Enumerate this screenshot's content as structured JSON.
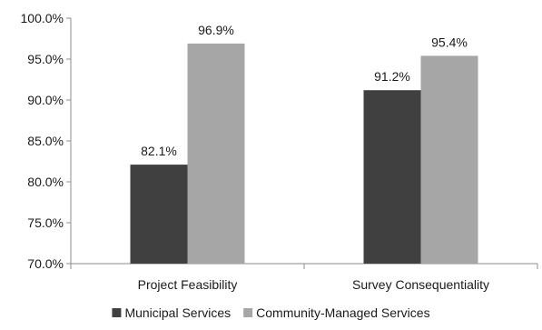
{
  "chart_data": {
    "type": "bar",
    "categories": [
      "Project Feasibility",
      "Survey Consequentiality"
    ],
    "series": [
      {
        "name": "Municipal Services",
        "values": [
          82.1,
          91.2
        ],
        "labels": [
          "82.1%",
          "91.2%"
        ],
        "color": "#404040"
      },
      {
        "name": "Community-Managed Services",
        "values": [
          96.9,
          95.4
        ],
        "labels": [
          "96.9%",
          "95.4%"
        ],
        "color": "#a6a6a6"
      }
    ],
    "title": "",
    "xlabel": "",
    "ylabel": "",
    "ylim": [
      70,
      100
    ],
    "yticks": [
      70,
      75,
      80,
      85,
      90,
      95,
      100
    ],
    "ytick_labels": [
      "70.0%",
      "75.0%",
      "80.0%",
      "85.0%",
      "90.0%",
      "95.0%",
      "100.0%"
    ],
    "grid": false,
    "legend_position": "bottom"
  }
}
